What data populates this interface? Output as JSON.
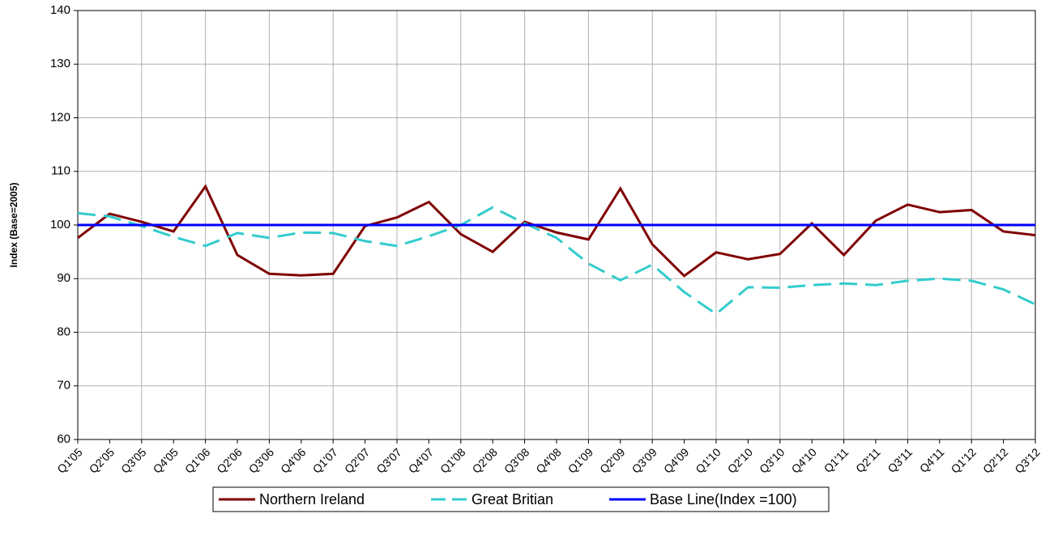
{
  "chart_data": {
    "type": "line",
    "y_label": "Index (Base=2005)",
    "categories": [
      "Q1'05",
      "Q2'05",
      "Q3'05",
      "Q4'05",
      "Q1'06",
      "Q2'06",
      "Q3'06",
      "Q4'06",
      "Q1'07",
      "Q2'07",
      "Q3'07",
      "Q4'07",
      "Q1'08",
      "Q2'08",
      "Q3'08",
      "Q4'08",
      "Q1'09",
      "Q2'09",
      "Q3'09",
      "Q4'09",
      "Q1'10",
      "Q2'10",
      "Q3'10",
      "Q4'10",
      "Q1'11",
      "Q2'11",
      "Q3'11",
      "Q4'11",
      "Q1'12",
      "Q2'12",
      "Q3'12"
    ],
    "series": [
      {
        "name": "Northern Ireland",
        "color": "#800000",
        "dash": false,
        "values": [
          97.6,
          102.1,
          100.6,
          98.8,
          107.2,
          94.4,
          90.9,
          90.6,
          90.9,
          99.8,
          101.4,
          104.3,
          98.3,
          95.0,
          100.6,
          98.6,
          97.3,
          106.8,
          96.4,
          90.5,
          94.9,
          93.6,
          94.6,
          100.3,
          94.4,
          100.8,
          103.8,
          102.4,
          102.8,
          98.8,
          98.1
        ]
      },
      {
        "name": "Great Britian",
        "color": "#33cccc",
        "dash": true,
        "values": [
          102.2,
          101.6,
          99.8,
          97.8,
          96.1,
          98.5,
          97.6,
          98.6,
          98.5,
          97.0,
          96.1,
          97.9,
          100.0,
          103.3,
          100.3,
          97.6,
          92.8,
          89.7,
          92.6,
          87.5,
          83.4,
          88.4,
          88.3,
          88.8,
          89.1,
          88.8,
          89.6,
          90.0,
          89.6,
          88.0,
          85.2
        ]
      },
      {
        "name": "Base Line(Index =100)",
        "color": "#0000ff",
        "dash": false,
        "values": [
          100,
          100,
          100,
          100,
          100,
          100,
          100,
          100,
          100,
          100,
          100,
          100,
          100,
          100,
          100,
          100,
          100,
          100,
          100,
          100,
          100,
          100,
          100,
          100,
          100,
          100,
          100,
          100,
          100,
          100,
          100
        ]
      }
    ],
    "ylim": [
      60,
      140
    ],
    "yticks": [
      60,
      70,
      80,
      90,
      100,
      110,
      120,
      130,
      140
    ],
    "grid": true,
    "legend": "bottom"
  }
}
